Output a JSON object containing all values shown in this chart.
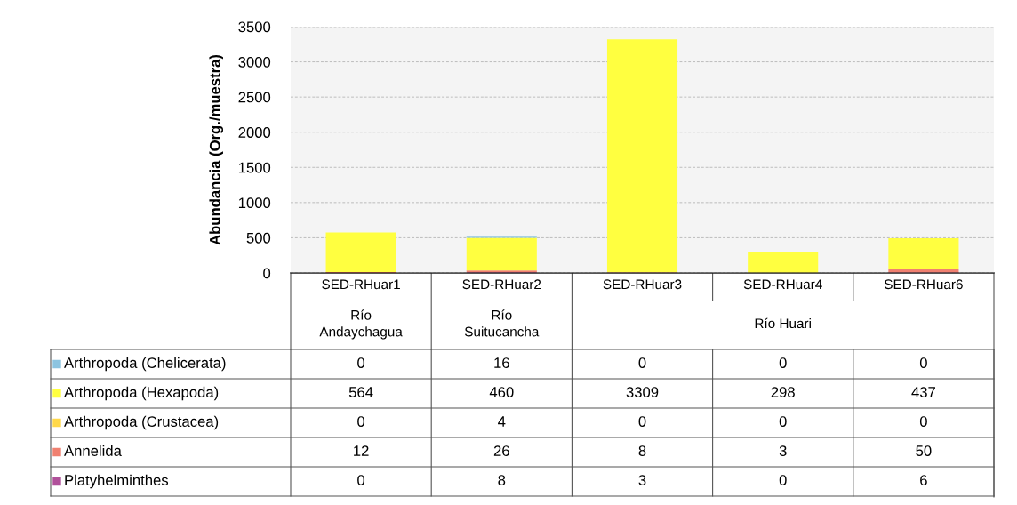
{
  "chart_data": {
    "type": "bar",
    "stacked": true,
    "ylabel": "Abundancia (Org./muestra)",
    "categories": [
      "SED-RHuar1",
      "SED-RHuar2",
      "SED-RHuar3",
      "SED-RHuar4",
      "SED-RHuar6"
    ],
    "series": [
      {
        "name": "Platyhelminthes",
        "color": "#b0509a",
        "values": [
          0,
          8,
          3,
          0,
          6
        ]
      },
      {
        "name": "Annelida",
        "color": "#f08070",
        "values": [
          12,
          26,
          8,
          3,
          50
        ]
      },
      {
        "name": "Arthropoda (Crustacea)",
        "color": "#ffd84a",
        "values": [
          0,
          4,
          0,
          0,
          0
        ]
      },
      {
        "name": "Arthropoda (Hexapoda)",
        "color": "#ffff40",
        "values": [
          564,
          460,
          3309,
          298,
          437
        ]
      },
      {
        "name": "Arthropoda (Chelicerata)",
        "color": "#8cc4e0",
        "values": [
          0,
          16,
          0,
          0,
          0
        ]
      }
    ],
    "ylim": [
      0,
      3500
    ],
    "yticks": [
      0,
      500,
      1000,
      1500,
      2000,
      2500,
      3000,
      3500
    ],
    "grid": "y",
    "legend": "bottom",
    "data_labels": true,
    "annotations": [
      "Río\nAndaychagua",
      "Río\nSuitucancha",
      "Río Huari"
    ]
  }
}
